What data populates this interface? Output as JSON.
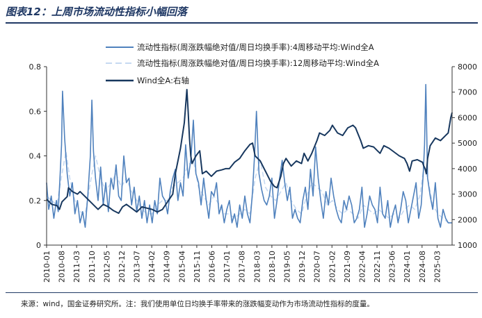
{
  "figure": {
    "title": "图表12：上周市场流动性指标小幅回落",
    "source": "来源：wind，国金证券研究所。注：我们使用单位日均换手率带来的涨跌幅变动作为市场流动性指标的度量。"
  },
  "colors": {
    "series1": "#4f81bd",
    "series2": "#c6d9f1",
    "series3": "#17375e",
    "rule": "#1f3864"
  },
  "chart_data": {
    "type": "line",
    "legend": [
      "流动性指标(周涨跌幅绝对值/周日均换手率):4周移动平均:Wind全A",
      "流动性指标(周涨跌幅绝对值/周日均换手率):12周移动平均:Wind全A",
      "Wind全A:右轴"
    ],
    "legend_placement": "top-center",
    "x_tick_labels": [
      "2010-01",
      "2010-08",
      "2011-03",
      "2011-10",
      "2012-05",
      "2012-12",
      "2013-07",
      "2014-02",
      "2014-09",
      "2015-04",
      "2015-11",
      "2016-06",
      "2017-01",
      "2017-08",
      "2018-03",
      "2018-10",
      "2019-05",
      "2019-12",
      "2020-07",
      "2021-02",
      "2021-09",
      "2022-04",
      "2022-11",
      "2023-06",
      "2024-01",
      "2024-08",
      "2025-03"
    ],
    "x_range_years": [
      2010.0,
      2025.75
    ],
    "y_left": {
      "range": [
        0,
        0.8
      ],
      "ticks": [
        "0",
        "0.2",
        "0.4",
        "0.6",
        "0.8"
      ]
    },
    "y_right": {
      "range": [
        1000,
        8000
      ],
      "ticks": [
        "1000",
        "2000",
        "3000",
        "4000",
        "5000",
        "6000",
        "7000",
        "8000"
      ]
    },
    "grid": false,
    "series": [
      {
        "name": "流动性指标(周涨跌幅绝对值/周日均换手率):4周移动平均:Wind全A",
        "axis": "left",
        "style": "solid",
        "x": [
          2010.0,
          2010.08,
          2010.18,
          2010.28,
          2010.38,
          2010.45,
          2010.52,
          2010.58,
          2010.62,
          2010.7,
          2010.8,
          2010.9,
          2011.0,
          2011.1,
          2011.2,
          2011.3,
          2011.4,
          2011.5,
          2011.6,
          2011.7,
          2011.76,
          2011.82,
          2011.9,
          2012.0,
          2012.1,
          2012.2,
          2012.3,
          2012.4,
          2012.5,
          2012.6,
          2012.7,
          2012.8,
          2012.9,
          2013.0,
          2013.1,
          2013.2,
          2013.3,
          2013.4,
          2013.5,
          2013.6,
          2013.7,
          2013.8,
          2013.9,
          2014.0,
          2014.1,
          2014.2,
          2014.3,
          2014.4,
          2014.5,
          2014.6,
          2014.7,
          2014.8,
          2014.9,
          2015.0,
          2015.1,
          2015.2,
          2015.3,
          2015.4,
          2015.5,
          2015.6,
          2015.7,
          2015.8,
          2015.9,
          2016.0,
          2016.1,
          2016.2,
          2016.3,
          2016.4,
          2016.5,
          2016.6,
          2016.7,
          2016.8,
          2016.9,
          2017.0,
          2017.1,
          2017.2,
          2017.3,
          2017.4,
          2017.5,
          2017.6,
          2017.7,
          2017.8,
          2017.9,
          2018.0,
          2018.08,
          2018.15,
          2018.25,
          2018.35,
          2018.45,
          2018.55,
          2018.65,
          2018.75,
          2018.85,
          2018.95,
          2019.05,
          2019.15,
          2019.25,
          2019.35,
          2019.45,
          2019.55,
          2019.65,
          2019.75,
          2019.85,
          2019.95,
          2020.05,
          2020.15,
          2020.25,
          2020.35,
          2020.45,
          2020.55,
          2020.65,
          2020.75,
          2020.85,
          2020.95,
          2021.05,
          2021.15,
          2021.25,
          2021.35,
          2021.45,
          2021.55,
          2021.65,
          2021.75,
          2021.85,
          2021.95,
          2022.05,
          2022.15,
          2022.25,
          2022.35,
          2022.45,
          2022.55,
          2022.65,
          2022.75,
          2022.85,
          2022.95,
          2023.05,
          2023.15,
          2023.25,
          2023.35,
          2023.45,
          2023.55,
          2023.65,
          2023.75,
          2023.85,
          2023.95,
          2024.05,
          2024.15,
          2024.25,
          2024.35,
          2024.45,
          2024.55,
          2024.63,
          2024.68,
          2024.73,
          2024.8,
          2024.9,
          2025.0,
          2025.1,
          2025.2,
          2025.3,
          2025.4,
          2025.5,
          2025.6,
          2025.7,
          2025.75
        ],
        "values": [
          0.28,
          0.16,
          0.22,
          0.12,
          0.2,
          0.15,
          0.3,
          0.45,
          0.69,
          0.48,
          0.32,
          0.22,
          0.28,
          0.14,
          0.2,
          0.1,
          0.15,
          0.08,
          0.22,
          0.4,
          0.65,
          0.42,
          0.3,
          0.2,
          0.35,
          0.18,
          0.28,
          0.15,
          0.3,
          0.25,
          0.36,
          0.22,
          0.2,
          0.4,
          0.28,
          0.3,
          0.18,
          0.26,
          0.15,
          0.22,
          0.12,
          0.2,
          0.1,
          0.18,
          0.1,
          0.2,
          0.14,
          0.3,
          0.22,
          0.2,
          0.14,
          0.24,
          0.3,
          0.34,
          0.2,
          0.28,
          0.22,
          0.45,
          0.3,
          0.38,
          0.56,
          0.32,
          0.28,
          0.18,
          0.3,
          0.2,
          0.12,
          0.24,
          0.22,
          0.28,
          0.14,
          0.18,
          0.1,
          0.16,
          0.2,
          0.1,
          0.14,
          0.08,
          0.18,
          0.12,
          0.22,
          0.14,
          0.1,
          0.24,
          0.41,
          0.6,
          0.32,
          0.25,
          0.2,
          0.18,
          0.22,
          0.3,
          0.12,
          0.2,
          0.3,
          0.38,
          0.28,
          0.2,
          0.26,
          0.12,
          0.16,
          0.12,
          0.1,
          0.2,
          0.26,
          0.16,
          0.34,
          0.22,
          0.44,
          0.3,
          0.2,
          0.12,
          0.24,
          0.18,
          0.3,
          0.22,
          0.16,
          0.12,
          0.1,
          0.2,
          0.16,
          0.22,
          0.18,
          0.1,
          0.12,
          0.16,
          0.26,
          0.08,
          0.14,
          0.22,
          0.18,
          0.16,
          0.1,
          0.26,
          0.14,
          0.12,
          0.2,
          0.08,
          0.14,
          0.18,
          0.1,
          0.16,
          0.24,
          0.2,
          0.1,
          0.16,
          0.22,
          0.28,
          0.12,
          0.18,
          0.32,
          0.45,
          0.72,
          0.3,
          0.22,
          0.16,
          0.28,
          0.12,
          0.08,
          0.16,
          0.12,
          0.1,
          0.1,
          0.1
        ],
        "color": "#4f81bd"
      },
      {
        "name": "流动性指标(周涨跌幅绝对值/周日均换手率):12周移动平均:Wind全A",
        "axis": "left",
        "style": "dashed",
        "x": [
          2010.0,
          2010.2,
          2010.4,
          2010.6,
          2010.75,
          2010.9,
          2011.1,
          2011.3,
          2011.5,
          2011.7,
          2011.9,
          2012.1,
          2012.3,
          2012.5,
          2012.7,
          2012.9,
          2013.1,
          2013.3,
          2013.5,
          2013.7,
          2013.9,
          2014.1,
          2014.3,
          2014.5,
          2014.7,
          2014.9,
          2015.1,
          2015.3,
          2015.5,
          2015.7,
          2015.9,
          2016.1,
          2016.3,
          2016.5,
          2016.7,
          2016.9,
          2017.1,
          2017.3,
          2017.5,
          2017.7,
          2017.9,
          2018.1,
          2018.3,
          2018.5,
          2018.7,
          2018.9,
          2019.1,
          2019.3,
          2019.5,
          2019.7,
          2019.9,
          2020.1,
          2020.3,
          2020.5,
          2020.7,
          2020.9,
          2021.1,
          2021.3,
          2021.5,
          2021.7,
          2021.9,
          2022.1,
          2022.3,
          2022.5,
          2022.7,
          2022.9,
          2023.1,
          2023.3,
          2023.5,
          2023.7,
          2023.9,
          2024.1,
          2024.3,
          2024.5,
          2024.65,
          2024.8,
          2025.0,
          2025.2,
          2025.4,
          2025.6,
          2025.75
        ],
        "values": [
          0.22,
          0.2,
          0.18,
          0.32,
          0.42,
          0.3,
          0.2,
          0.15,
          0.14,
          0.28,
          0.4,
          0.3,
          0.24,
          0.28,
          0.32,
          0.26,
          0.3,
          0.24,
          0.2,
          0.16,
          0.14,
          0.14,
          0.18,
          0.2,
          0.2,
          0.26,
          0.28,
          0.3,
          0.36,
          0.38,
          0.26,
          0.22,
          0.18,
          0.22,
          0.18,
          0.14,
          0.14,
          0.12,
          0.14,
          0.16,
          0.14,
          0.3,
          0.38,
          0.26,
          0.22,
          0.2,
          0.24,
          0.28,
          0.2,
          0.16,
          0.14,
          0.22,
          0.28,
          0.26,
          0.24,
          0.18,
          0.2,
          0.16,
          0.14,
          0.16,
          0.14,
          0.12,
          0.18,
          0.16,
          0.14,
          0.16,
          0.14,
          0.12,
          0.14,
          0.12,
          0.16,
          0.18,
          0.16,
          0.22,
          0.35,
          0.3,
          0.18,
          0.14,
          0.12,
          0.1,
          0.1
        ],
        "color": "#c6d9f1"
      },
      {
        "name": "Wind全A:右轴",
        "axis": "right",
        "style": "solid",
        "x": [
          2010.0,
          2010.2,
          2010.4,
          2010.5,
          2010.6,
          2010.8,
          2010.85,
          2011.0,
          2011.2,
          2011.3,
          2011.5,
          2011.7,
          2011.9,
          2012.0,
          2012.2,
          2012.4,
          2012.6,
          2012.8,
          2012.95,
          2013.1,
          2013.3,
          2013.5,
          2013.7,
          2013.9,
          2014.1,
          2014.3,
          2014.5,
          2014.7,
          2014.9,
          2015.0,
          2015.2,
          2015.35,
          2015.45,
          2015.5,
          2015.55,
          2015.6,
          2015.65,
          2015.8,
          2015.95,
          2016.05,
          2016.2,
          2016.4,
          2016.6,
          2016.8,
          2016.95,
          2017.1,
          2017.3,
          2017.5,
          2017.7,
          2017.9,
          2018.0,
          2018.1,
          2018.3,
          2018.5,
          2018.7,
          2018.85,
          2018.95,
          2019.1,
          2019.2,
          2019.3,
          2019.5,
          2019.7,
          2019.9,
          2020.0,
          2020.15,
          2020.3,
          2020.5,
          2020.6,
          2020.8,
          2021.0,
          2021.1,
          2021.3,
          2021.5,
          2021.7,
          2021.9,
          2022.0,
          2022.2,
          2022.3,
          2022.5,
          2022.7,
          2022.85,
          2022.95,
          2023.1,
          2023.3,
          2023.5,
          2023.7,
          2023.9,
          2024.0,
          2024.1,
          2024.2,
          2024.4,
          2024.6,
          2024.65,
          2024.7,
          2024.75,
          2024.8,
          2024.9,
          2025.1,
          2025.3,
          2025.5,
          2025.6,
          2025.7,
          2025.75
        ],
        "values": [
          2800,
          2600,
          2550,
          2400,
          2700,
          2900,
          3250,
          3100,
          3000,
          3100,
          2900,
          2700,
          2500,
          2400,
          2600,
          2500,
          2350,
          2250,
          2500,
          2600,
          2450,
          2300,
          2500,
          2450,
          2400,
          2300,
          2400,
          2700,
          3000,
          3800,
          4800,
          5800,
          7100,
          6200,
          5200,
          4500,
          4200,
          4500,
          4700,
          3800,
          3900,
          3700,
          3900,
          3950,
          4000,
          4000,
          4250,
          4400,
          4700,
          4950,
          5000,
          4500,
          4300,
          3900,
          3500,
          3300,
          3250,
          3700,
          4200,
          4400,
          4100,
          4300,
          4200,
          4600,
          4300,
          4600,
          5100,
          5400,
          5300,
          5500,
          5700,
          5400,
          5300,
          5600,
          5700,
          5600,
          5100,
          4800,
          4900,
          4850,
          4700,
          4600,
          4900,
          4800,
          4650,
          4500,
          4400,
          4200,
          3900,
          4300,
          4350,
          4250,
          4100,
          4000,
          3800,
          4400,
          4900,
          5200,
          5100,
          5300,
          5400,
          6000,
          6200
        ],
        "color": "#17375e"
      }
    ]
  }
}
